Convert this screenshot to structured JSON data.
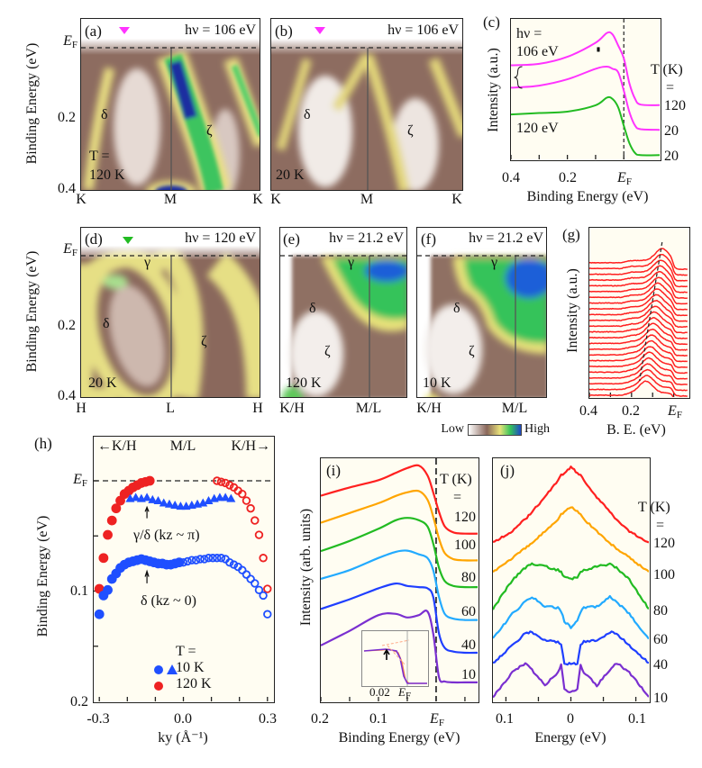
{
  "common": {
    "ylabel_be": "Binding Energy (eV)",
    "ef_main": "E",
    "ef_sub": "F",
    "tick_02": "0.2",
    "tick_04": "0.4",
    "tick_01": "0.1"
  },
  "panels": {
    "a": {
      "label": "(a)",
      "hv": "hν = 106 eV",
      "temp_line1": "T =",
      "temp_line2": "120 K",
      "band_delta": "δ",
      "band_zeta": "ζ",
      "xticks": [
        "K",
        "M",
        "K"
      ],
      "marker_color": "#ff33ff"
    },
    "b": {
      "label": "(b)",
      "hv": "hν = 106 eV",
      "temp": "20 K",
      "band_delta": "δ",
      "band_zeta": "ζ",
      "xticks": [
        "K",
        "M",
        "K"
      ],
      "marker_color": "#ff33ff"
    },
    "c": {
      "label": "(c)",
      "hv_line1": "hν =",
      "hv_line2": "106 eV",
      "hv_other": "120 eV",
      "ylabel": "Intensity (a.u.)",
      "xlabel": "Binding Energy (eV)",
      "xticks": [
        "0.4",
        "0.2"
      ],
      "temp_header": "T (K)",
      "equals": "=",
      "temps": [
        "120",
        "20",
        "20"
      ]
    },
    "d": {
      "label": "(d)",
      "hv": "hν = 120 eV",
      "temp": "20 K",
      "band_gamma": "γ",
      "band_delta": "δ",
      "band_zeta": "ζ",
      "xticks": [
        "H",
        "L",
        "H"
      ],
      "marker_color": "#22bb22"
    },
    "e": {
      "label": "(e)",
      "hv": "hν = 21.2 eV",
      "temp": "120 K",
      "band_gamma": "γ",
      "band_delta": "δ",
      "band_zeta": "ζ",
      "xticks": [
        "K/H",
        "M/L"
      ]
    },
    "f": {
      "label": "(f)",
      "hv": "hν = 21.2 eV",
      "temp": "10 K",
      "band_gamma": "γ",
      "band_delta": "δ",
      "band_zeta": "ζ",
      "xticks": [
        "K/H",
        "M/L"
      ]
    },
    "g": {
      "label": "(g)",
      "ylabel": "Intensity (a.u.)",
      "xlabel": "B. E. (eV)",
      "xticks": [
        "0.4",
        "0.2"
      ]
    },
    "h": {
      "label": "(h)",
      "top_left": "←K/H",
      "top_mid": "M/L",
      "top_right": "K/H→",
      "ylabel": "Binding Energy (eV)",
      "xticks": [
        "-0.3",
        "0.0",
        "0.3"
      ],
      "xlabel": "ky (Å⁻¹)",
      "annot_upper": "γ/δ (kz ~ π)",
      "annot_lower": "δ (kz ~ 0)",
      "legend_title": "T =",
      "legend_10": "10 K",
      "legend_120": "120 K"
    },
    "i": {
      "label": "(i)",
      "ylabel": "Intensity (arb. units)",
      "xlabel": "Binding Energy (eV)",
      "xticks": [
        "0.2",
        "0.1"
      ],
      "temp_header": "T (K)",
      "equals": "=",
      "temps": [
        "120",
        "100",
        "80",
        "60",
        "40",
        "10"
      ],
      "inset_tick": "0.02"
    },
    "j": {
      "label": "(j)",
      "xlabel": "Energy (eV)",
      "xticks": [
        "0.1",
        "0",
        "0.1"
      ],
      "temp_header": "T (K)",
      "equals": "=",
      "temps": [
        "120",
        "100",
        "80",
        "60",
        "40",
        "10"
      ]
    }
  },
  "colorbar": {
    "low": "Low",
    "high": "High",
    "colors": [
      "#ffffff",
      "#8a675a",
      "#e8e27a",
      "#35c35a",
      "#1f49c8"
    ]
  },
  "colors": {
    "t120": "#ff2020",
    "t100": "#ffa500",
    "t80": "#22bb22",
    "t60": "#22aaff",
    "t40": "#1f3fff",
    "t10": "#7a2fd0",
    "magenta": "#ff33ff",
    "green": "#22bb22",
    "blue": "#1f4fff",
    "red": "#ee2222"
  },
  "chart_data": [
    {
      "panel": "c",
      "type": "line",
      "xlabel": "Binding Energy (eV)",
      "ylabel": "Intensity (a.u.)",
      "xlim": [
        0.4,
        -0.127
      ],
      "xticks": [
        0.4,
        0.2,
        0
      ],
      "x": [
        0.4,
        0.3,
        0.2,
        0.1,
        0.06,
        0.04,
        0.02,
        0,
        -0.02,
        -0.04,
        -0.06,
        -0.127
      ],
      "series": [
        {
          "name": "106 eV, 120 K",
          "color": "#ff33ff",
          "values": [
            6.7,
            6.8,
            7.3,
            8.3,
            9.0,
            8.9,
            8.1,
            7.2,
            5.4,
            4.3,
            3.9,
            3.86
          ]
        },
        {
          "name": "106 eV, 20 K",
          "color": "#ff33ff",
          "values": [
            5.1,
            5.25,
            5.7,
            6.45,
            6.6,
            6.45,
            6.2,
            4.9,
            3.35,
            2.4,
            2.15,
            2.1
          ]
        },
        {
          "name": "120 eV, 20 K",
          "color": "#22bb22",
          "values": [
            3.2,
            3.3,
            3.4,
            3.85,
            4.4,
            4.3,
            3.7,
            2.4,
            1.15,
            0.45,
            0.3,
            0.3
          ]
        }
      ]
    },
    {
      "panel": "g",
      "type": "line",
      "xlabel": "B. E. (eV)",
      "ylabel": "Intensity (a.u.)",
      "xlim": [
        0.4,
        -0.07
      ],
      "color": "#ff2020",
      "peak_binding_energy": [
        0.055,
        0.058,
        0.062,
        0.065,
        0.068,
        0.071,
        0.075,
        0.078,
        0.082,
        0.085,
        0.088,
        0.092,
        0.095,
        0.098,
        0.102,
        0.105,
        0.108,
        0.112,
        0.115,
        0.118,
        0.122,
        0.125,
        0.128,
        0.132
      ]
    },
    {
      "panel": "h",
      "type": "scatter",
      "xlabel": "ky (Å⁻¹)",
      "ylabel": "Binding Energy (eV)",
      "xlim": [
        -0.32,
        0.32
      ],
      "ylim": [
        -0.04,
        0.2
      ],
      "xticks": [
        -0.3,
        0.0,
        0.3
      ],
      "yticks": [
        0,
        0.1,
        0.2
      ],
      "series": [
        {
          "name": "120 K",
          "marker": "circle",
          "color": "#ee2222",
          "filled": true,
          "x": [
            -0.3,
            -0.285,
            -0.27,
            -0.255,
            -0.24,
            -0.225,
            -0.21,
            -0.195,
            -0.18,
            -0.165,
            -0.15,
            -0.135,
            -0.12
          ],
          "y": [
            0.098,
            0.07,
            0.049,
            0.036,
            0.025,
            0.018,
            0.012,
            0.009,
            0.006,
            0.004,
            0.002,
            0.001,
            0.0
          ]
        },
        {
          "name": "120 K",
          "marker": "circle",
          "color": "#ee2222",
          "filled": false,
          "x": [
            0.12,
            0.135,
            0.15,
            0.165,
            0.18,
            0.195,
            0.21,
            0.225,
            0.24,
            0.255,
            0.27,
            0.285,
            0.3
          ],
          "y": [
            0.0,
            0.001,
            0.002,
            0.004,
            0.006,
            0.009,
            0.012,
            0.018,
            0.025,
            0.036,
            0.049,
            0.07,
            0.098
          ]
        },
        {
          "name": "10 K",
          "marker": "circle",
          "color": "#1f4fff",
          "filled": true,
          "x": [
            -0.3,
            -0.285,
            -0.27,
            -0.255,
            -0.24,
            -0.225,
            -0.21,
            -0.195,
            -0.18,
            -0.165,
            -0.15,
            -0.135,
            -0.12,
            -0.105,
            -0.09,
            -0.075,
            -0.06,
            -0.045,
            -0.03,
            -0.015
          ],
          "y": [
            0.121,
            0.104,
            0.099,
            0.089,
            0.084,
            0.079,
            0.076,
            0.074,
            0.073,
            0.072,
            0.071,
            0.072,
            0.073,
            0.074,
            0.075,
            0.075,
            0.076,
            0.076,
            0.075,
            0.074
          ]
        },
        {
          "name": "10 K",
          "marker": "circle",
          "color": "#1f4fff",
          "filled": false,
          "x": [
            0,
            0.015,
            0.03,
            0.045,
            0.06,
            0.075,
            0.09,
            0.105,
            0.12,
            0.135,
            0.15,
            0.165,
            0.18,
            0.195,
            0.21,
            0.225,
            0.24,
            0.255,
            0.27,
            0.285,
            0.3
          ],
          "y": [
            0.074,
            0.073,
            0.072,
            0.072,
            0.071,
            0.071,
            0.07,
            0.07,
            0.07,
            0.07,
            0.071,
            0.074,
            0.076,
            0.078,
            0.081,
            0.085,
            0.089,
            0.093,
            0.099,
            0.104,
            0.121
          ]
        },
        {
          "name": "10 K",
          "marker": "triangle",
          "color": "#1f4fff",
          "filled": true,
          "x": [
            -0.19,
            -0.17,
            -0.15,
            -0.13,
            -0.11,
            -0.09,
            -0.07,
            -0.05,
            -0.03,
            -0.01,
            0.01,
            0.03,
            0.05,
            0.07,
            0.09,
            0.11,
            0.13,
            0.15,
            0.17
          ],
          "y": [
            0.016,
            0.015,
            0.016,
            0.015,
            0.017,
            0.018,
            0.02,
            0.021,
            0.022,
            0.023,
            0.023,
            0.022,
            0.021,
            0.02,
            0.018,
            0.016,
            0.015,
            0.015,
            0.016
          ]
        }
      ]
    },
    {
      "panel": "i",
      "type": "line",
      "xlabel": "Binding Energy (eV)",
      "ylabel": "Intensity (arb. units)",
      "xlim": [
        0.2,
        -0.072
      ],
      "xticks": [
        0.2,
        0.1,
        0
      ],
      "x": [
        0.2,
        0.15,
        0.1,
        0.07,
        0.05,
        0.03,
        0.015,
        0.005,
        -0.005,
        -0.015,
        -0.03,
        -0.05,
        -0.072
      ],
      "series": [
        {
          "name": "120",
          "color": "#ff2020",
          "values": [
            8.46,
            8.8,
            9.1,
            9.4,
            9.6,
            9.7,
            9.3,
            8.6,
            7.8,
            7.2,
            6.95,
            6.9,
            6.9
          ]
        },
        {
          "name": "100",
          "color": "#ffa500",
          "values": [
            7.35,
            7.75,
            8.15,
            8.45,
            8.6,
            8.65,
            8.3,
            7.6,
            6.7,
            6.1,
            5.85,
            5.8,
            5.8
          ]
        },
        {
          "name": "80",
          "color": "#22bb22",
          "values": [
            6.18,
            6.6,
            7.1,
            7.45,
            7.55,
            7.45,
            7.2,
            6.5,
            5.5,
            4.95,
            4.75,
            4.7,
            4.7
          ]
        },
        {
          "name": "60",
          "color": "#22aaff",
          "values": [
            5.04,
            5.4,
            5.9,
            6.15,
            6.2,
            6.05,
            5.9,
            5.4,
            4.3,
            3.6,
            3.4,
            3.35,
            3.35
          ]
        },
        {
          "name": "40",
          "color": "#1f3fff",
          "values": [
            3.8,
            4.2,
            4.65,
            4.85,
            4.75,
            4.7,
            4.65,
            4.3,
            2.8,
            2.2,
            2.05,
            2.0,
            2.0
          ]
        },
        {
          "name": "10",
          "color": "#7a2fd0",
          "values": [
            2.3,
            2.9,
            3.55,
            3.6,
            3.45,
            3.55,
            3.7,
            2.8,
            1.0,
            0.82,
            0.78,
            0.78,
            0.78
          ]
        }
      ]
    },
    {
      "panel": "j",
      "type": "line",
      "xlabel": "Energy (eV)",
      "xlim": [
        -0.12,
        0.12
      ],
      "xticks": [
        -0.1,
        0,
        0.1
      ],
      "symmetric": true,
      "x_abs": [
        0,
        0.01,
        0.015,
        0.02,
        0.04,
        0.06,
        0.07,
        0.09,
        0.12
      ],
      "series": [
        {
          "name": "120",
          "color": "#ff2020",
          "values": [
            9.63,
            9.4,
            9.3,
            9.1,
            8.4,
            7.8,
            7.5,
            7.0,
            6.54
          ]
        },
        {
          "name": "100",
          "color": "#ffa500",
          "values": [
            8.0,
            7.8,
            7.7,
            7.5,
            7.0,
            6.5,
            6.3,
            5.9,
            5.33
          ]
        },
        {
          "name": "80",
          "color": "#22bb22",
          "values": [
            5.04,
            5.1,
            5.35,
            5.4,
            5.55,
            5.65,
            5.5,
            5.0,
            3.8
          ]
        },
        {
          "name": "60",
          "color": "#22aaff",
          "values": [
            3.05,
            3.3,
            3.7,
            3.85,
            3.9,
            4.3,
            4.1,
            3.6,
            2.57
          ]
        },
        {
          "name": "40",
          "color": "#1f3fff",
          "values": [
            1.54,
            1.56,
            2.3,
            2.45,
            2.5,
            2.85,
            2.8,
            2.3,
            1.58
          ]
        },
        {
          "name": "10",
          "color": "#7a2fd0",
          "values": [
            0.37,
            0.5,
            1.5,
            1.2,
            0.66,
            1.3,
            1.58,
            1.2,
            0.18
          ]
        }
      ]
    }
  ]
}
